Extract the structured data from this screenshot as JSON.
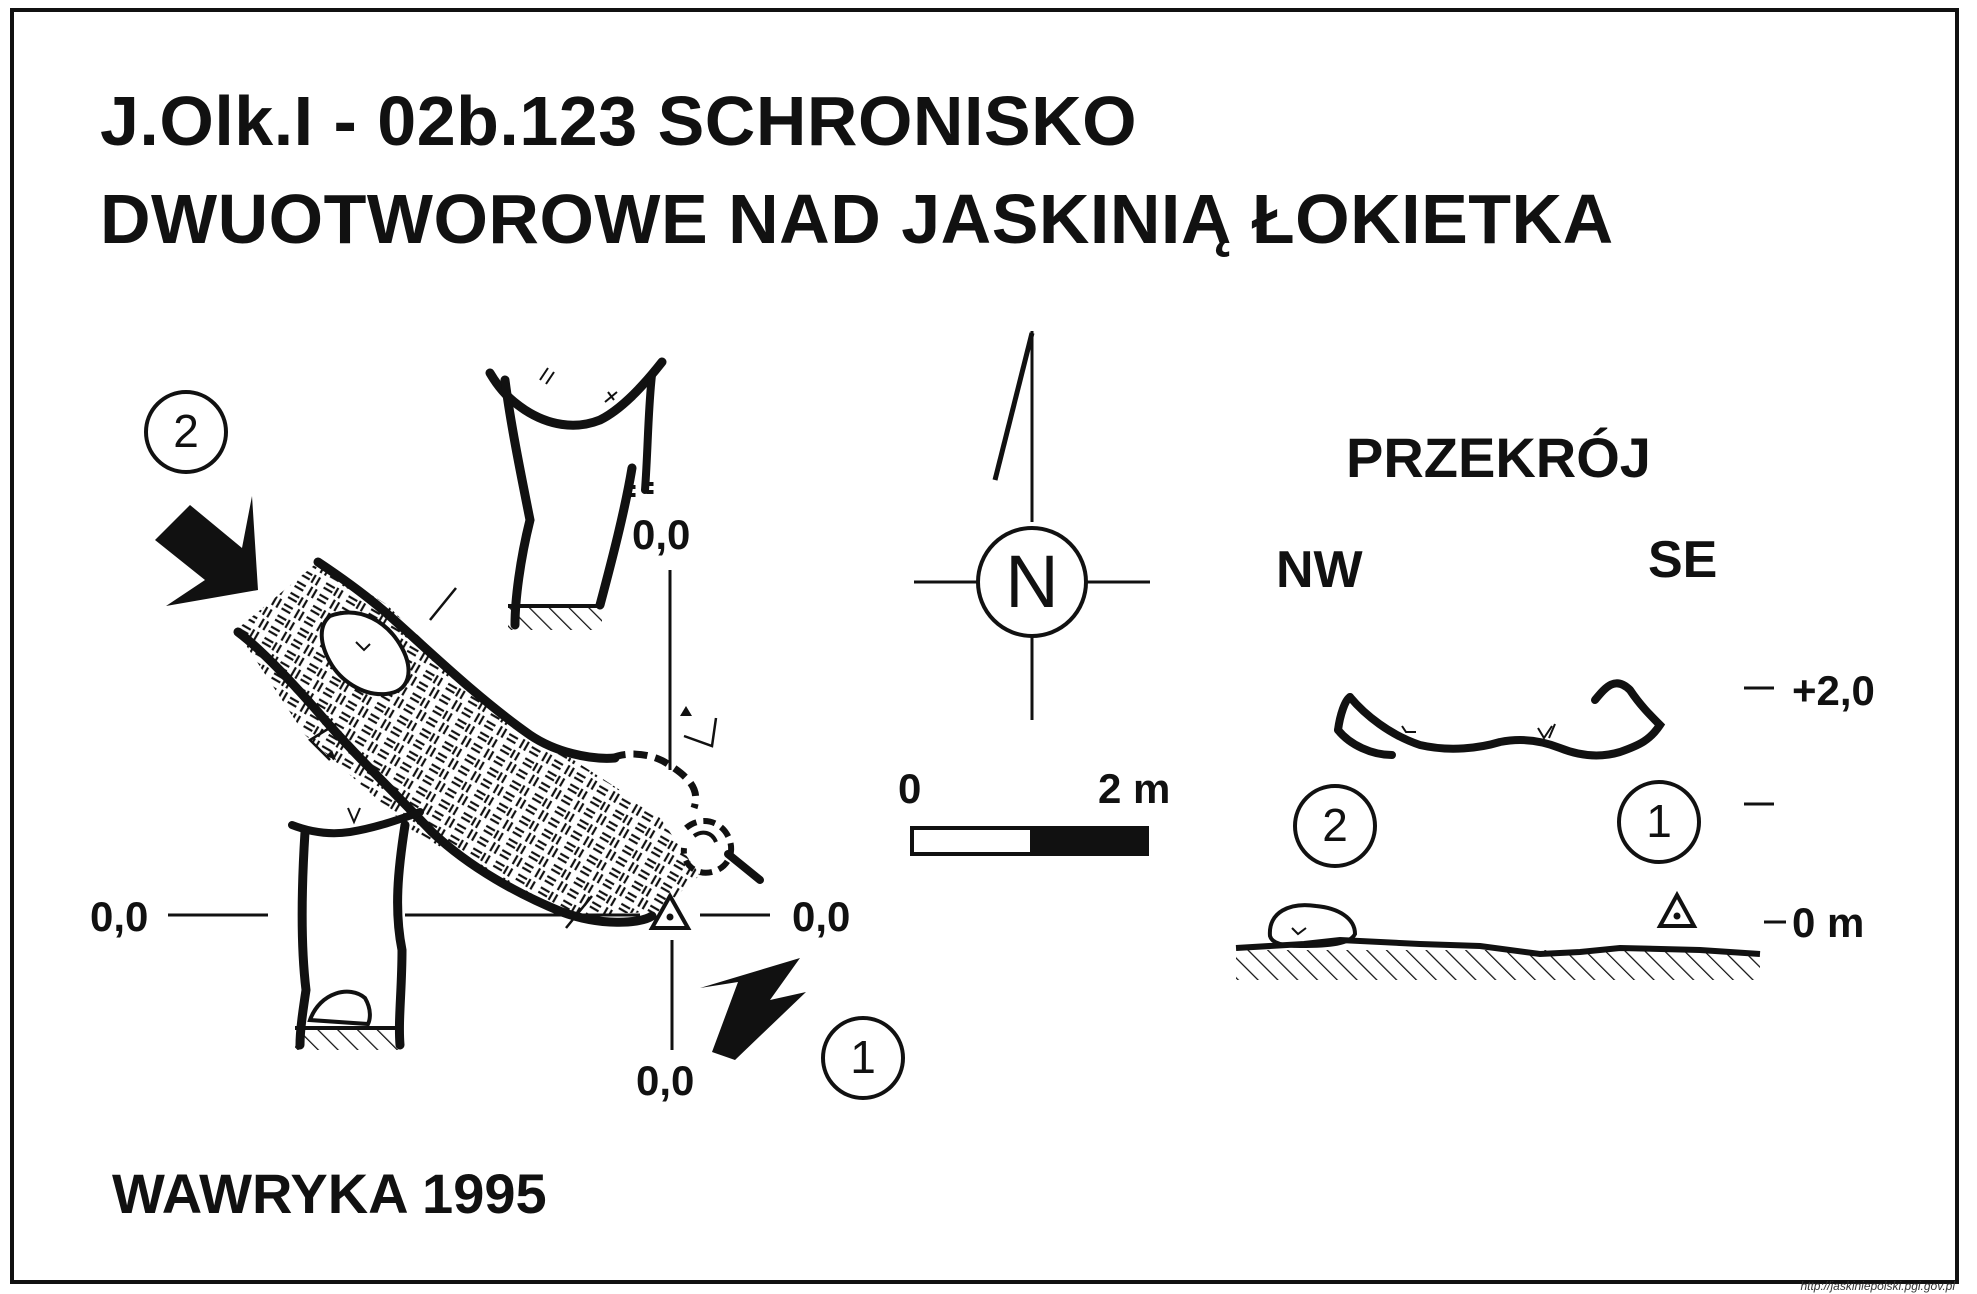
{
  "map": {
    "title_line1": "J.Olk.I - 02b.123  SCHRONISKO",
    "title_line2": "DWUOTWOROWE NAD JASKINIĄ ŁOKIETKA",
    "entrance_1_label": "1",
    "entrance_2_label": "2",
    "datum_labels": {
      "top": "0,0",
      "left": "0,0",
      "right": "0,0",
      "bottom": "0,0"
    },
    "north_label": "N",
    "scale": {
      "start_label": "0",
      "end_label": "2 m"
    },
    "section": {
      "title": "PRZEKRÓJ",
      "left_direction": "NW",
      "right_direction": "SE",
      "elevation_top": "+2,0",
      "elevation_bottom": "0 m",
      "entrance_2_label": "2",
      "entrance_1_label": "1"
    },
    "author": "WAWRYKA 1995",
    "source": "http://jaskiniepolski.pgi.gov.pl",
    "colors": {
      "ink": "#111111",
      "paper": "#ffffff"
    }
  }
}
